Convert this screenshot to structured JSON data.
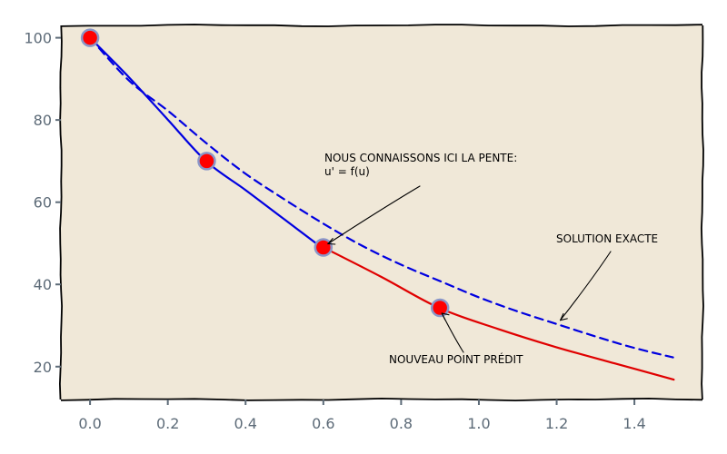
{
  "chart_data": {
    "type": "line",
    "title": "",
    "xlabel": "",
    "ylabel": "",
    "xlim": [
      -0.075,
      1.575
    ],
    "ylim": [
      12,
      103
    ],
    "grid": false,
    "x_ticks": [
      0.0,
      0.2,
      0.4,
      0.6,
      0.8,
      1.0,
      1.2,
      1.4
    ],
    "x_tick_labels": [
      "0.0",
      "0.2",
      "0.4",
      "0.6",
      "0.8",
      "1.0",
      "1.2",
      "1.4"
    ],
    "y_ticks": [
      20,
      40,
      60,
      80,
      100
    ],
    "y_tick_labels": [
      "20",
      "40",
      "60",
      "80",
      "100"
    ],
    "series": [
      {
        "name": "",
        "style": "dashed",
        "color": "#0000e0",
        "x": [
          0.0,
          0.1,
          0.2,
          0.3,
          0.4,
          0.5,
          0.6,
          0.7,
          0.8,
          0.9,
          1.0,
          1.1,
          1.2,
          1.3,
          1.4,
          1.5
        ],
        "y": [
          100,
          89.5,
          81.9,
          74.1,
          67.0,
          60.7,
          54.9,
          49.7,
          44.9,
          40.7,
          36.8,
          33.3,
          30.1,
          27.3,
          24.7,
          22.3
        ]
      },
      {
        "name": "",
        "style": "solid",
        "color": "#0000e0",
        "x": [
          0.0,
          0.1,
          0.2,
          0.3,
          0.4,
          0.5,
          0.6
        ],
        "y": [
          100,
          90.0,
          80.0,
          70.0,
          63.0,
          56.0,
          49.0
        ]
      },
      {
        "name": "",
        "style": "solid",
        "color": "#e00000",
        "x": [
          0.6,
          0.75,
          0.9,
          1.05,
          1.2,
          1.35,
          1.5
        ],
        "y": [
          49.0,
          41.8,
          34.3,
          29.2,
          24.9,
          21.0,
          16.8
        ]
      }
    ],
    "points": [
      {
        "x": 0.0,
        "y": 100
      },
      {
        "x": 0.3,
        "y": 70
      },
      {
        "x": 0.6,
        "y": 49
      },
      {
        "x": 0.9,
        "y": 34.3
      }
    ],
    "point_color": "#ff0000",
    "point_edge_color": "#8a96c8",
    "background": "#f0e8d8",
    "annotations": [
      {
        "lines": [
          "NOUS CONNAISSONS ICI LA PENTE:",
          "u' = f(u)"
        ]
      },
      {
        "lines": [
          "SOLUTION EXACTE"
        ]
      },
      {
        "lines": [
          "NOUVEAU POINT PRÉDIT"
        ]
      }
    ]
  }
}
